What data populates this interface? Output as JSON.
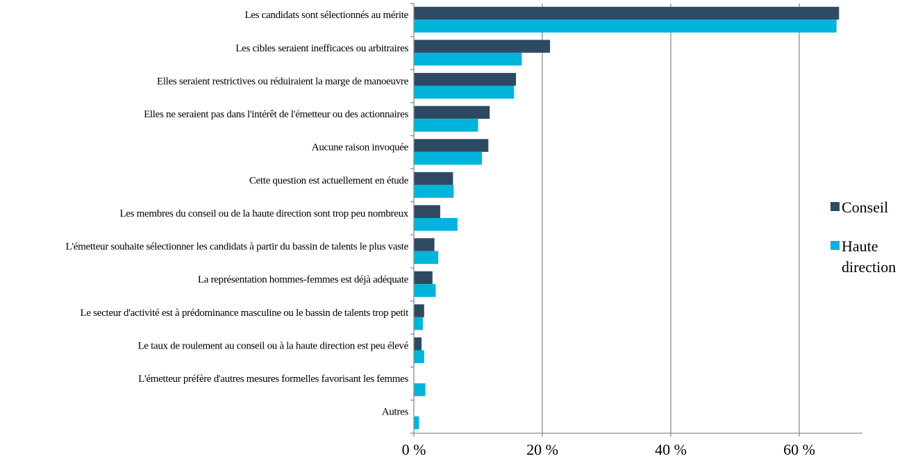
{
  "chart_data": {
    "type": "bar",
    "orientation": "horizontal",
    "categories": [
      "Les candidats sont sélectionnés au mérite",
      "Les cibles seraient inefficaces ou arbitraires",
      "Elles seraient restrictives ou réduiraient la marge de manoeuvre",
      "Elles ne seraient pas dans l'intérêt de l'émetteur ou des actionnaires",
      "Aucune raison invoquée",
      "Cette question est actuellement en étude",
      "Les membres du conseil ou de la haute direction sont trop peu nombreux",
      "L'émetteur souhaite sélectionner les candidats à partir du bassin de talents le plus vaste",
      "La représentation hommes-femmes est déjà adéquate",
      "Le secteur d'activité est à prédominance masculine ou le bassin de talents trop petit",
      "Le taux de roulement au conseil ou à la haute direction est peu élevé",
      "L'émetteur préfère d'autres mesures formelles favorisant les femmes",
      "Autres"
    ],
    "series": [
      {
        "name": "Conseil",
        "color": "#2e4a62",
        "values": [
          66.2,
          21.2,
          15.9,
          11.8,
          11.6,
          6.1,
          4.1,
          3.2,
          2.9,
          1.6,
          1.2,
          0,
          0
        ]
      },
      {
        "name": "Haute direction",
        "color": "#00b4dc",
        "values": [
          65.8,
          16.8,
          15.6,
          10.0,
          10.6,
          6.2,
          6.8,
          3.8,
          3.4,
          1.4,
          1.6,
          1.8,
          0.8
        ]
      }
    ],
    "x_ticks": [
      0,
      20,
      40,
      60
    ],
    "x_tick_labels": [
      "0 %",
      "20 %",
      "40 %",
      "60 %"
    ],
    "xlim": [
      0,
      70
    ],
    "grid": "vertical",
    "legend_position": "right",
    "legend": [
      {
        "lines": [
          "Conseil"
        ]
      },
      {
        "lines": [
          "Haute",
          "direction"
        ]
      }
    ]
  }
}
